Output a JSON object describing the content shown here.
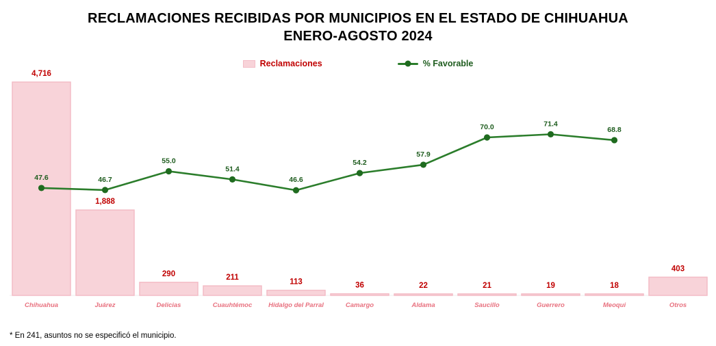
{
  "title": {
    "line1": "RECLAMACIONES RECIBIDAS POR MUNICIPIOS EN EL ESTADO DE CHIHUAHUA",
    "line2": "ENERO-AGOSTO 2024"
  },
  "legend": {
    "reclamaciones": "Reclamaciones",
    "favorable": "% Favorable"
  },
  "footnote": "* En 241, asuntos no se especificó el municipio.",
  "colors": {
    "bar_fill": "#f8d3d9",
    "bar_border": "#f3bcc6",
    "value_label": "#c00000",
    "category_label": "#e8717f",
    "line": "#2b7d2b",
    "marker": "#1f6b1f",
    "line_label": "#1e5c1e",
    "baseline": "#ececec"
  },
  "chart_data": {
    "type": "combo",
    "subtype": "bar+line",
    "categories": [
      "Chihuahua",
      "Juárez",
      "Delicias",
      "Cuauhtémoc",
      "Hidalgo del Parral",
      "Camargo",
      "Aldama",
      "Saucillo",
      "Guerrero",
      "Meoqui",
      "Otros"
    ],
    "series": [
      {
        "name": "Reclamaciones",
        "type": "bar",
        "values": [
          4716,
          1888,
          290,
          211,
          113,
          36,
          22,
          21,
          19,
          18,
          403
        ],
        "labels": [
          "4,716",
          "1,888",
          "290",
          "211",
          "113",
          "36",
          "22",
          "21",
          "19",
          "18",
          "403"
        ]
      },
      {
        "name": "% Favorable",
        "type": "line",
        "values": [
          47.6,
          46.7,
          55.0,
          51.4,
          46.6,
          54.2,
          57.9,
          70.0,
          71.4,
          68.8,
          null
        ],
        "labels": [
          "47.6",
          "46.7",
          "55.0",
          "51.4",
          "46.6",
          "54.2",
          "57.9",
          "70.0",
          "71.4",
          "68.8",
          null
        ]
      }
    ],
    "title": "RECLAMACIONES RECIBIDAS POR MUNICIPIOS EN EL ESTADO DE CHIHUAHUA ENERO-AGOSTO 2024",
    "bar_axis_max": 4716,
    "percent_axis_range": [
      0,
      100
    ],
    "legend_position": "top",
    "grid": false,
    "data_labels": true
  }
}
